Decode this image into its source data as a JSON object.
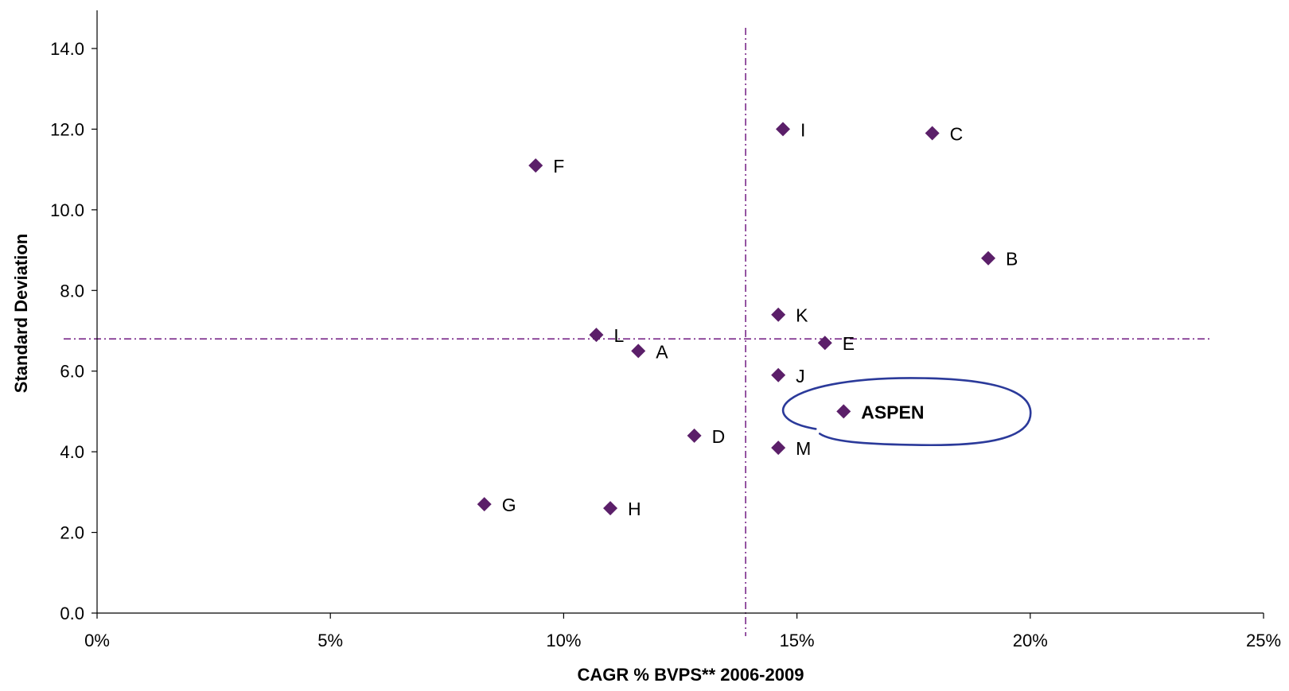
{
  "chart_data": {
    "type": "scatter",
    "title": "",
    "xlabel": "CAGR % BVPS** 2006-2009",
    "ylabel": "Standard Deviation",
    "xlim": [
      0,
      25
    ],
    "ylim": [
      0,
      14
    ],
    "x_ticks": [
      0,
      5,
      10,
      15,
      20,
      25
    ],
    "x_tick_labels": [
      "0%",
      "5%",
      "10%",
      "15%",
      "20%",
      "25%"
    ],
    "y_ticks": [
      0,
      2,
      4,
      6,
      8,
      10,
      12,
      14
    ],
    "y_tick_labels": [
      "0.0",
      "2.0",
      "4.0",
      "6.0",
      "8.0",
      "10.0",
      "12.0",
      "14.0"
    ],
    "grid": false,
    "marker_color": "#5B1F69",
    "reference_line_color": "#7A2A8A",
    "highlight_color": "#2B3A9A",
    "reference_lines": {
      "x": 13.9,
      "y": 6.8
    },
    "points": [
      {
        "label": "A",
        "x": 11.6,
        "y": 6.5
      },
      {
        "label": "B",
        "x": 19.1,
        "y": 8.8
      },
      {
        "label": "C",
        "x": 17.9,
        "y": 11.9
      },
      {
        "label": "D",
        "x": 12.8,
        "y": 4.4
      },
      {
        "label": "E",
        "x": 15.6,
        "y": 6.7
      },
      {
        "label": "F",
        "x": 9.4,
        "y": 11.1
      },
      {
        "label": "G",
        "x": 8.3,
        "y": 2.7
      },
      {
        "label": "H",
        "x": 11.0,
        "y": 2.6
      },
      {
        "label": "I",
        "x": 14.7,
        "y": 12.0
      },
      {
        "label": "J",
        "x": 14.6,
        "y": 5.9
      },
      {
        "label": "K",
        "x": 14.6,
        "y": 7.4
      },
      {
        "label": "L",
        "x": 10.7,
        "y": 6.9
      },
      {
        "label": "M",
        "x": 14.6,
        "y": 4.1
      },
      {
        "label": "ASPEN",
        "x": 16.0,
        "y": 5.0,
        "highlight": true
      }
    ]
  }
}
